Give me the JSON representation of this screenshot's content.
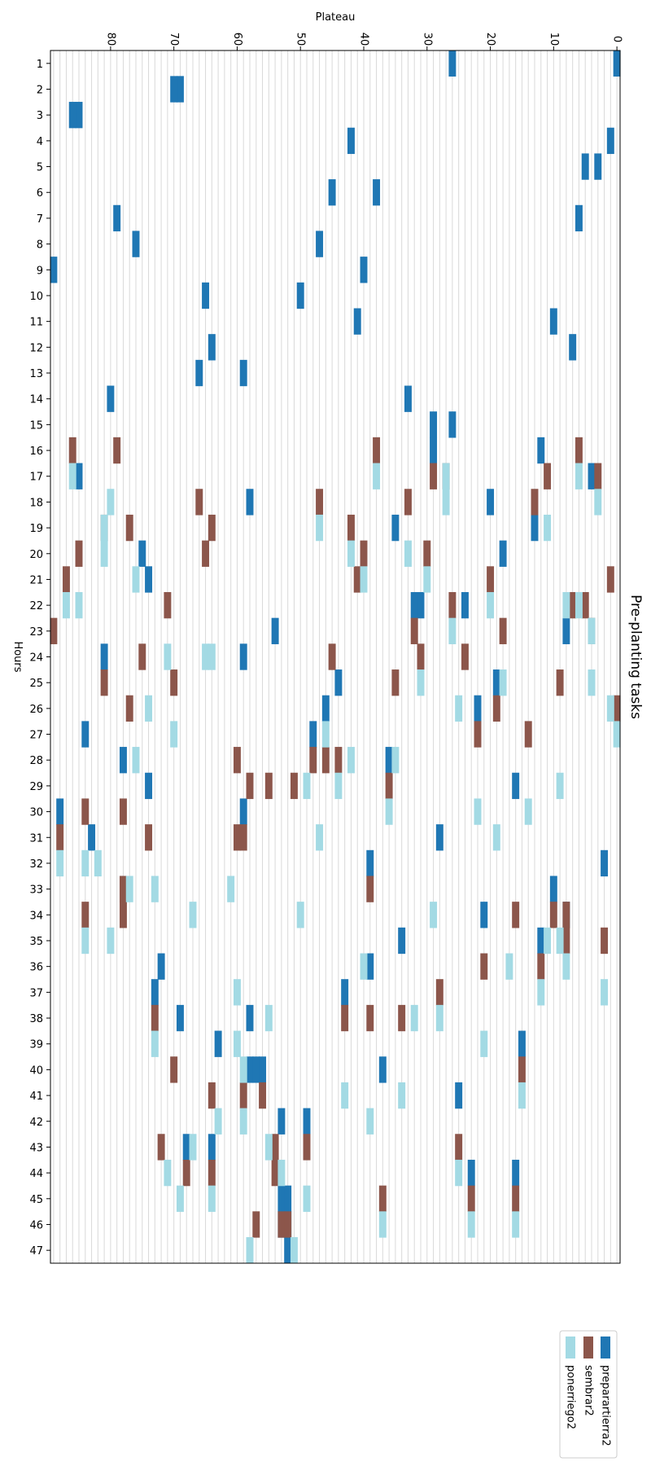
{
  "chart_data": {
    "type": "heatmap",
    "title": "Pre-planting tasks",
    "xlabel": "Plateau",
    "ylabel": "Hours",
    "xlim": [
      0,
      89
    ],
    "x_ticks": [
      0,
      10,
      20,
      30,
      40,
      50,
      60,
      70,
      80
    ],
    "x_tick_labels": [
      "0",
      "10",
      "20",
      "30",
      "40",
      "50",
      "60",
      "70",
      "80"
    ],
    "y_categories": [
      "1",
      "2",
      "3",
      "4",
      "5",
      "6",
      "7",
      "8",
      "9",
      "10",
      "11",
      "12",
      "13",
      "14",
      "15",
      "16",
      "17",
      "18",
      "19",
      "20",
      "21",
      "22",
      "23",
      "24",
      "25",
      "26",
      "27",
      "28",
      "29",
      "30",
      "31",
      "32",
      "33",
      "34",
      "35",
      "36",
      "37",
      "38",
      "39",
      "40",
      "41",
      "42",
      "43",
      "44",
      "45",
      "46",
      "47"
    ],
    "grid": true,
    "legend_position": "bottom-right",
    "series": [
      {
        "name": "preparartierra2",
        "color": "#1f77b4",
        "points": [
          [
            1,
            0
          ],
          [
            1,
            26
          ],
          [
            2,
            69
          ],
          [
            2,
            70
          ],
          [
            3,
            85
          ],
          [
            3,
            86
          ],
          [
            4,
            1
          ],
          [
            4,
            42
          ],
          [
            5,
            5
          ],
          [
            5,
            3
          ],
          [
            6,
            45
          ],
          [
            6,
            38
          ],
          [
            7,
            6
          ],
          [
            7,
            79
          ],
          [
            8,
            76
          ],
          [
            8,
            47
          ],
          [
            9,
            89
          ],
          [
            9,
            40
          ],
          [
            10,
            65
          ],
          [
            10,
            50
          ],
          [
            11,
            41
          ],
          [
            11,
            10
          ],
          [
            12,
            64
          ],
          [
            12,
            7
          ],
          [
            13,
            66
          ],
          [
            13,
            59
          ],
          [
            14,
            80
          ],
          [
            14,
            33
          ],
          [
            15,
            29
          ],
          [
            15,
            26
          ],
          [
            16,
            29
          ],
          [
            16,
            12
          ],
          [
            17,
            85
          ],
          [
            17,
            4
          ],
          [
            18,
            20
          ],
          [
            18,
            58
          ],
          [
            19,
            35
          ],
          [
            19,
            13
          ],
          [
            20,
            75
          ],
          [
            20,
            18
          ],
          [
            21,
            74
          ],
          [
            22,
            31
          ],
          [
            22,
            32
          ],
          [
            22,
            24
          ],
          [
            23,
            8
          ],
          [
            23,
            54
          ],
          [
            24,
            59
          ],
          [
            24,
            81
          ],
          [
            25,
            44
          ],
          [
            25,
            19
          ],
          [
            26,
            46
          ],
          [
            26,
            22
          ],
          [
            27,
            84
          ],
          [
            27,
            48
          ],
          [
            28,
            78
          ],
          [
            28,
            36
          ],
          [
            29,
            74
          ],
          [
            29,
            16
          ],
          [
            30,
            88
          ],
          [
            30,
            59
          ],
          [
            31,
            83
          ],
          [
            31,
            28
          ],
          [
            32,
            39
          ],
          [
            32,
            2
          ],
          [
            33,
            78
          ],
          [
            33,
            10
          ],
          [
            34,
            21
          ],
          [
            34,
            8
          ],
          [
            35,
            34
          ],
          [
            35,
            12
          ],
          [
            36,
            72
          ],
          [
            36,
            39
          ],
          [
            37,
            73
          ],
          [
            37,
            43
          ],
          [
            38,
            69
          ],
          [
            38,
            58
          ],
          [
            39,
            63
          ],
          [
            39,
            15
          ],
          [
            40,
            58
          ],
          [
            40,
            57
          ],
          [
            40,
            56
          ],
          [
            40,
            37
          ],
          [
            41,
            25
          ],
          [
            42,
            53
          ],
          [
            42,
            49
          ],
          [
            43,
            68
          ],
          [
            43,
            64
          ],
          [
            44,
            23
          ],
          [
            44,
            16
          ],
          [
            45,
            53
          ],
          [
            45,
            52
          ],
          [
            46,
            52
          ],
          [
            46,
            53
          ],
          [
            47,
            52
          ]
        ]
      },
      {
        "name": "sembrar2",
        "color": "#8c564b",
        "points": [
          [
            16,
            86
          ],
          [
            16,
            79
          ],
          [
            16,
            38
          ],
          [
            16,
            6
          ],
          [
            17,
            29
          ],
          [
            17,
            27
          ],
          [
            17,
            11
          ],
          [
            17,
            3
          ],
          [
            18,
            66
          ],
          [
            18,
            47
          ],
          [
            18,
            33
          ],
          [
            18,
            13
          ],
          [
            19,
            81
          ],
          [
            19,
            77
          ],
          [
            19,
            64
          ],
          [
            19,
            42
          ],
          [
            20,
            85
          ],
          [
            20,
            65
          ],
          [
            20,
            40
          ],
          [
            20,
            30
          ],
          [
            21,
            87
          ],
          [
            21,
            41
          ],
          [
            21,
            20
          ],
          [
            21,
            1
          ],
          [
            22,
            71
          ],
          [
            22,
            26
          ],
          [
            22,
            7
          ],
          [
            22,
            5
          ],
          [
            23,
            89
          ],
          [
            23,
            32
          ],
          [
            23,
            18
          ],
          [
            23,
            4
          ],
          [
            24,
            75
          ],
          [
            24,
            45
          ],
          [
            24,
            31
          ],
          [
            24,
            24
          ],
          [
            25,
            81
          ],
          [
            25,
            70
          ],
          [
            25,
            35
          ],
          [
            25,
            9
          ],
          [
            26,
            77
          ],
          [
            26,
            19
          ],
          [
            26,
            0
          ],
          [
            27,
            22
          ],
          [
            27,
            14
          ],
          [
            28,
            60
          ],
          [
            28,
            48
          ],
          [
            28,
            46
          ],
          [
            28,
            44
          ],
          [
            29,
            58
          ],
          [
            29,
            55
          ],
          [
            29,
            51
          ],
          [
            29,
            36
          ],
          [
            30,
            84
          ],
          [
            30,
            78
          ],
          [
            31,
            88
          ],
          [
            31,
            60
          ],
          [
            31,
            59
          ],
          [
            31,
            74
          ],
          [
            33,
            78
          ],
          [
            33,
            39
          ],
          [
            34,
            84
          ],
          [
            34,
            78
          ],
          [
            34,
            16
          ],
          [
            34,
            10
          ],
          [
            34,
            8
          ],
          [
            35,
            8
          ],
          [
            35,
            2
          ],
          [
            36,
            12
          ],
          [
            36,
            21
          ],
          [
            37,
            28
          ],
          [
            38,
            73
          ],
          [
            38,
            39
          ],
          [
            38,
            34
          ],
          [
            38,
            43
          ],
          [
            40,
            70
          ],
          [
            40,
            15
          ],
          [
            41,
            64
          ],
          [
            41,
            59
          ],
          [
            41,
            56
          ],
          [
            43,
            54
          ],
          [
            43,
            49
          ],
          [
            43,
            72
          ],
          [
            43,
            25
          ],
          [
            44,
            68
          ],
          [
            44,
            64
          ],
          [
            44,
            54
          ],
          [
            45,
            23
          ],
          [
            45,
            37
          ],
          [
            45,
            16
          ],
          [
            46,
            57
          ],
          [
            46,
            53
          ],
          [
            46,
            52
          ]
        ]
      },
      {
        "name": "ponerriego2",
        "color": "#a3dae4",
        "points": [
          [
            17,
            86
          ],
          [
            17,
            38
          ],
          [
            17,
            27
          ],
          [
            17,
            6
          ],
          [
            18,
            80
          ],
          [
            18,
            27
          ],
          [
            18,
            3
          ],
          [
            19,
            81
          ],
          [
            19,
            47
          ],
          [
            19,
            11
          ],
          [
            20,
            81
          ],
          [
            20,
            42
          ],
          [
            20,
            33
          ],
          [
            21,
            76
          ],
          [
            21,
            40
          ],
          [
            21,
            30
          ],
          [
            22,
            87
          ],
          [
            22,
            85
          ],
          [
            22,
            20
          ],
          [
            22,
            8
          ],
          [
            22,
            6
          ],
          [
            23,
            26
          ],
          [
            23,
            4
          ],
          [
            24,
            71
          ],
          [
            24,
            65
          ],
          [
            24,
            64
          ],
          [
            25,
            31
          ],
          [
            25,
            18
          ],
          [
            25,
            4
          ],
          [
            26,
            74
          ],
          [
            26,
            25
          ],
          [
            26,
            1
          ],
          [
            27,
            70
          ],
          [
            27,
            46
          ],
          [
            27,
            0
          ],
          [
            28,
            76
          ],
          [
            28,
            42
          ],
          [
            28,
            35
          ],
          [
            29,
            49
          ],
          [
            29,
            44
          ],
          [
            29,
            9
          ],
          [
            30,
            36
          ],
          [
            30,
            22
          ],
          [
            30,
            14
          ],
          [
            31,
            47
          ],
          [
            31,
            19
          ],
          [
            32,
            88
          ],
          [
            32,
            84
          ],
          [
            32,
            82
          ],
          [
            33,
            77
          ],
          [
            33,
            73
          ],
          [
            33,
            61
          ],
          [
            34,
            67
          ],
          [
            34,
            50
          ],
          [
            34,
            29
          ],
          [
            35,
            84
          ],
          [
            35,
            80
          ],
          [
            35,
            11
          ],
          [
            35,
            9
          ],
          [
            36,
            40
          ],
          [
            36,
            17
          ],
          [
            36,
            8
          ],
          [
            37,
            60
          ],
          [
            37,
            12
          ],
          [
            37,
            2
          ],
          [
            38,
            55
          ],
          [
            38,
            32
          ],
          [
            38,
            28
          ],
          [
            39,
            73
          ],
          [
            39,
            60
          ],
          [
            39,
            21
          ],
          [
            40,
            59
          ],
          [
            41,
            43
          ],
          [
            41,
            34
          ],
          [
            41,
            15
          ],
          [
            42,
            63
          ],
          [
            42,
            59
          ],
          [
            42,
            39
          ],
          [
            43,
            67
          ],
          [
            43,
            55
          ],
          [
            44,
            71
          ],
          [
            44,
            53
          ],
          [
            44,
            25
          ],
          [
            45,
            69
          ],
          [
            45,
            64
          ],
          [
            45,
            49
          ],
          [
            46,
            37
          ],
          [
            46,
            23
          ],
          [
            46,
            16
          ],
          [
            47,
            58
          ],
          [
            47,
            51
          ]
        ]
      }
    ]
  }
}
